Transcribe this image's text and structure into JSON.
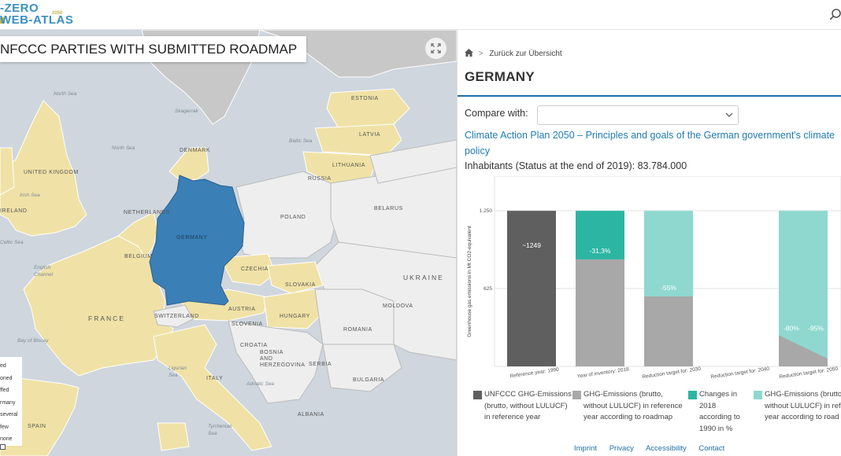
{
  "header": {
    "logo_line1": "-ZERO",
    "logo_year": "2050",
    "logo_line2": "WEB-ATLAS",
    "search_icon": "search-icon"
  },
  "map": {
    "title": "NFCCC PARTIES WITH SUBMITTED ROADMAP",
    "fullscreen_icon": "expand-icon",
    "countries": {
      "united_kingdom": "UNITED\nKINGDOM",
      "denmark": "DENMARK",
      "netherlands": "NETHERLANDS",
      "belgium": "BELGIUM",
      "germany": "GERMANY",
      "france": "FRANCE",
      "switzerland": "SWITZERLAND",
      "austria": "AUSTRIA",
      "czechia": "CZECHIA",
      "slovakia": "SLOVAKIA",
      "hungary": "HUNGARY",
      "slovenia": "SLOVENIA",
      "croatia": "CROATIA",
      "bosnia": "BOSNIA\nAND\nHERZEGOVINA",
      "serbia": "SERBIA",
      "italy": "ITALY",
      "poland": "POLAND",
      "belarus": "BELARUS",
      "ukraine": "UKRAINE",
      "lithuania": "LITHUANIA",
      "latvia": "LATVIA",
      "estonia": "ESTONIA",
      "russia": "RUSSIA",
      "moldova": "MOLDOVA",
      "romania": "ROMANIA",
      "bulgaria": "BULGARIA",
      "spain": "SPAIN",
      "albania": "ALBANIA",
      "ireland": "IRELAND",
      "skagerrak": "Skagerrak"
    },
    "seas": {
      "north_sea": "North Sea",
      "north_sea2": "North Sea",
      "irish_sea": "Irish Sea",
      "baltic_sea": "Baltic Sea",
      "celtic_sea": "Celtic Sea",
      "english_channel": "English\nChannel",
      "bay_of_biscay": "Bay of Biscay",
      "adriatic_sea": "Adriatic Sea",
      "ligurian_sea": "Ligurian\nSea",
      "tyrrhenian_sea": "Tyrrhenian\nSea"
    },
    "legend": [
      "ed",
      "oned",
      "ffed",
      "rmany",
      "several",
      "few",
      "none"
    ]
  },
  "panel": {
    "breadcrumb_home_icon": "home-icon",
    "breadcrumb_back": "Zurück zur Übersicht",
    "country": "GERMANY",
    "compare_label": "Compare with:",
    "compare_value": "",
    "plan_link_line1": "Climate Action Plan 2050 – Principles and goals of the German government's climate",
    "plan_link_line2": "policy",
    "inhabitants": "Inhabitants (Status at the end of 2019): 83.784.000",
    "footer_links": [
      "Imprint",
      "Privacy",
      "Accessibility",
      "Contact"
    ]
  },
  "chart_data": {
    "type": "bar",
    "ylabel": "Greenhouse gas emissions in Mt CO2-equivalent",
    "yticks": [
      "1.250",
      "625"
    ],
    "ylim": [
      0,
      1250
    ],
    "categories": [
      "Reference year: 1990",
      "Year of inventory: 2018",
      "Reduction target for: 2030",
      "Reduction target for: 2040",
      "Reduction target for: 2050"
    ],
    "series": [
      {
        "name": "UNFCCC GHG-Emissions (brutto, without LULUCF) in reference year",
        "color": "#5f5f5f",
        "values": [
          1249,
          null,
          null,
          null,
          null
        ]
      },
      {
        "name": "GHG-Emissions (brutto, without LULUCF) in reference year according to roadmap",
        "color": "#a8a8a8",
        "values": [
          null,
          859,
          562,
          null,
          150
        ]
      },
      {
        "name": "Changes in 2018 according to 1990 in %",
        "color": "#2cb5a3",
        "values": [
          null,
          -31.3,
          null,
          null,
          null
        ]
      },
      {
        "name": "GHG-Emissions (brutto, without LULUCF) in reference year according to roadmap",
        "color": "#8ed8cf",
        "values": [
          null,
          null,
          -55,
          null,
          "-80% -95%"
        ]
      }
    ],
    "labels": {
      "ref": "~1249",
      "inv": "-31,3%",
      "t2030": "-55%",
      "t2050a": "-80%",
      "t2050b": "-95%"
    },
    "legend": [
      {
        "line1": "UNFCCC GHG-Emissions",
        "line2": "(brutto, without LULUCF)",
        "line3": "in reference year",
        "color": "#5f5f5f"
      },
      {
        "line1": "GHG-Emissions (brutto,",
        "line2": "without LULUCF) in reference",
        "line3": "year according to roadmap",
        "color": "#a8a8a8"
      },
      {
        "line1": "Changes in",
        "line2": "2018",
        "line3": "according to",
        "line4": "1990 in %",
        "color": "#2cb5a3"
      },
      {
        "line1": "GHG-Emissions (brutto,",
        "line2": "without LULUCF) in refe",
        "line3": "year according to road",
        "color": "#8ed8cf"
      }
    ]
  }
}
